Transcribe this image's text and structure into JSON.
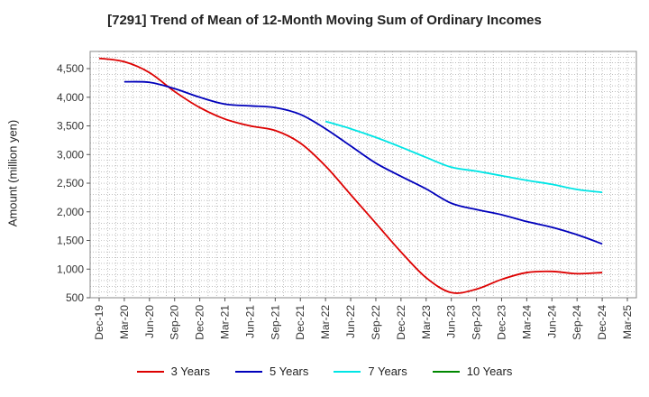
{
  "chart_data": {
    "type": "line",
    "title": "[7291]  Trend of Mean of 12-Month Moving Sum of Ordinary Incomes",
    "xlabel": "",
    "ylabel": "Amount (million yen)",
    "ylim": [
      500,
      4800
    ],
    "y_ticks": [
      500,
      1000,
      1500,
      2000,
      2500,
      3000,
      3500,
      4000,
      4500
    ],
    "y_tick_labels": [
      "500",
      "1,000",
      "1,500",
      "2,000",
      "2,500",
      "3,000",
      "3,500",
      "4,000",
      "4,500"
    ],
    "x_tick_labels": [
      "Dec-19",
      "Mar-20",
      "Jun-20",
      "Sep-20",
      "Dec-20",
      "Mar-21",
      "Jun-21",
      "Sep-21",
      "Dec-21",
      "Mar-22",
      "Jun-22",
      "Sep-22",
      "Dec-22",
      "Mar-23",
      "Jun-23",
      "Sep-23",
      "Dec-23",
      "Mar-24",
      "Jun-24",
      "Sep-24",
      "Dec-24",
      "Mar-25"
    ],
    "grid": true,
    "legend_position": "bottom",
    "series": [
      {
        "name": "3 Years",
        "color": "#dd0000",
        "points": [
          [
            0,
            4680
          ],
          [
            1,
            4620
          ],
          [
            2,
            4430
          ],
          [
            3,
            4100
          ],
          [
            4,
            3820
          ],
          [
            5,
            3620
          ],
          [
            6,
            3500
          ],
          [
            7,
            3420
          ],
          [
            8,
            3200
          ],
          [
            9,
            2800
          ],
          [
            10,
            2300
          ],
          [
            11,
            1800
          ],
          [
            12,
            1300
          ],
          [
            13,
            850
          ],
          [
            14,
            590
          ],
          [
            15,
            650
          ],
          [
            16,
            820
          ],
          [
            17,
            940
          ],
          [
            18,
            960
          ],
          [
            19,
            920
          ],
          [
            20,
            940
          ]
        ]
      },
      {
        "name": "5 Years",
        "color": "#0000bb",
        "points": [
          [
            1,
            4270
          ],
          [
            2,
            4260
          ],
          [
            3,
            4150
          ],
          [
            4,
            4000
          ],
          [
            5,
            3880
          ],
          [
            6,
            3850
          ],
          [
            7,
            3820
          ],
          [
            8,
            3700
          ],
          [
            9,
            3450
          ],
          [
            10,
            3150
          ],
          [
            11,
            2850
          ],
          [
            12,
            2620
          ],
          [
            13,
            2400
          ],
          [
            14,
            2150
          ],
          [
            15,
            2040
          ],
          [
            16,
            1950
          ],
          [
            17,
            1830
          ],
          [
            18,
            1730
          ],
          [
            19,
            1600
          ],
          [
            20,
            1440
          ]
        ]
      },
      {
        "name": "7 Years",
        "color": "#00e5e5",
        "points": [
          [
            9,
            3580
          ],
          [
            10,
            3450
          ],
          [
            11,
            3300
          ],
          [
            12,
            3130
          ],
          [
            13,
            2950
          ],
          [
            14,
            2780
          ],
          [
            15,
            2710
          ],
          [
            16,
            2630
          ],
          [
            17,
            2550
          ],
          [
            18,
            2480
          ],
          [
            19,
            2390
          ],
          [
            20,
            2340
          ]
        ]
      },
      {
        "name": "10 Years",
        "color": "#008800",
        "points": []
      }
    ]
  }
}
